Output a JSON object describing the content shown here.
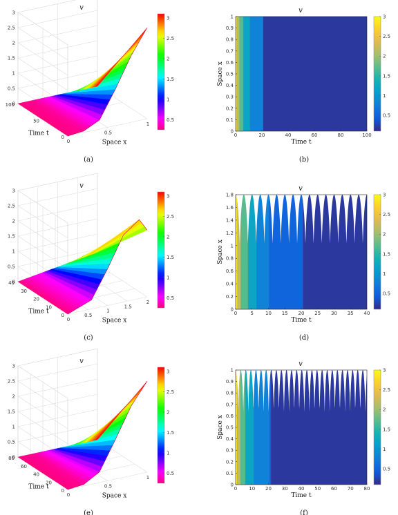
{
  "panels": [
    {
      "id": "a",
      "caption": "(a)",
      "title": "v",
      "chart_data": {
        "type": "surface",
        "xlabel": "Space x",
        "ylabel": "Time t",
        "xlim": [
          0,
          1
        ],
        "tlim": [
          0,
          100
        ],
        "zlim": [
          0,
          3
        ],
        "x_ticks": [
          "0",
          "0.5",
          "1"
        ],
        "t_ticks": [
          "0",
          "50",
          "100"
        ],
        "z_ticks": [
          "0",
          "0.5",
          "1",
          "1.5",
          "2",
          "2.5",
          "3"
        ],
        "colorbar_ticks": [
          "0.5",
          "1",
          "1.5",
          "2",
          "2.5",
          "3"
        ],
        "colormap": "hsv",
        "front_profile": [
          [
            0,
            0
          ],
          [
            0.2,
            0.05
          ],
          [
            0.4,
            0.3
          ],
          [
            0.6,
            1.2
          ],
          [
            0.8,
            2.2
          ],
          [
            1.0,
            3.0
          ]
        ],
        "back_profile": [
          [
            0,
            0
          ],
          [
            1.0,
            0.0
          ]
        ]
      }
    },
    {
      "id": "b",
      "caption": "(b)",
      "title": "v",
      "chart_data": {
        "type": "heatmap",
        "xlabel": "Time t",
        "ylabel": "Space x",
        "xlim": [
          0,
          100
        ],
        "ylim": [
          0,
          1
        ],
        "x_ticks": [
          "0",
          "20",
          "40",
          "60",
          "80",
          "100"
        ],
        "y_ticks": [
          "0",
          "0.1",
          "0.2",
          "0.3",
          "0.4",
          "0.5",
          "0.6",
          "0.7",
          "0.8",
          "0.9",
          "1"
        ],
        "colorbar_ticks": [
          "0.5",
          "1",
          "1.5",
          "2",
          "2.5",
          "3"
        ],
        "colormap": "parula",
        "bands": [
          {
            "t0": 0,
            "t1": 1,
            "level": 0.95
          },
          {
            "t0": 1,
            "t1": 3,
            "level": 0.7
          },
          {
            "t0": 3,
            "t1": 6,
            "level": 0.55
          },
          {
            "t0": 6,
            "t1": 11,
            "level": 0.38
          },
          {
            "t0": 11,
            "t1": 21,
            "level": 0.24
          },
          {
            "t0": 21,
            "t1": 100,
            "level": 0.03
          }
        ]
      }
    },
    {
      "id": "c",
      "caption": "(c)",
      "title": "v",
      "chart_data": {
        "type": "surface",
        "xlabel": "Space x",
        "ylabel": "Time t",
        "xlim": [
          0,
          2
        ],
        "tlim": [
          0,
          40
        ],
        "zlim": [
          0,
          3
        ],
        "x_ticks": [
          "0",
          "0.5",
          "1",
          "1.5",
          "2"
        ],
        "t_ticks": [
          "0",
          "10",
          "20",
          "30",
          "40"
        ],
        "z_ticks": [
          "0",
          "0.5",
          "1",
          "1.5",
          "2",
          "2.5",
          "3"
        ],
        "colorbar_ticks": [
          "0.5",
          "1",
          "1.5",
          "2",
          "2.5",
          "3"
        ],
        "colormap": "hsv",
        "front_profile": [
          [
            0,
            0
          ],
          [
            0.6,
            0.3
          ],
          [
            1.0,
            1.2
          ],
          [
            1.4,
            2.2
          ],
          [
            1.8,
            2.6
          ],
          [
            2.0,
            2.2
          ]
        ],
        "back_profile": [
          [
            0,
            0
          ],
          [
            2.0,
            0.4
          ]
        ]
      }
    },
    {
      "id": "d",
      "caption": "(d)",
      "title": "v",
      "chart_data": {
        "type": "heatmap",
        "xlabel": "Time t",
        "ylabel": "Space x",
        "xlim": [
          0,
          40
        ],
        "ylim": [
          0,
          1.8
        ],
        "x_ticks": [
          "0",
          "5",
          "10",
          "15",
          "20",
          "25",
          "30",
          "35",
          "40"
        ],
        "y_ticks": [
          "0",
          "0.2",
          "0.4",
          "0.6",
          "0.8",
          "1",
          "1.2",
          "1.4",
          "1.6",
          "1.8"
        ],
        "colorbar_ticks": [
          "0.5",
          "1",
          "1.5",
          "2",
          "2.5",
          "3"
        ],
        "colormap": "parula",
        "domain_period": 2.5,
        "domain_min": 0.95,
        "domain_max": 1.8,
        "bands": [
          {
            "t0": 0,
            "t1": 0.6,
            "level": 0.95
          },
          {
            "t0": 0.6,
            "t1": 1.6,
            "level": 0.72
          },
          {
            "t0": 1.6,
            "t1": 3.8,
            "level": 0.55
          },
          {
            "t0": 3.8,
            "t1": 6.4,
            "level": 0.38
          },
          {
            "t0": 6.4,
            "t1": 10.2,
            "level": 0.24
          },
          {
            "t0": 10.2,
            "t1": 20.5,
            "level": 0.14
          },
          {
            "t0": 20.5,
            "t1": 40,
            "level": 0.03
          }
        ]
      }
    },
    {
      "id": "e",
      "caption": "(e)",
      "title": "v",
      "chart_data": {
        "type": "surface",
        "xlabel": "Space x",
        "ylabel": "Time t",
        "xlim": [
          0,
          1
        ],
        "tlim": [
          0,
          80
        ],
        "zlim": [
          0,
          3
        ],
        "x_ticks": [
          "0",
          "0.5",
          "1"
        ],
        "t_ticks": [
          "0",
          "20",
          "40",
          "60",
          "80"
        ],
        "z_ticks": [
          "0",
          "0.5",
          "1",
          "1.5",
          "2",
          "2.5",
          "3"
        ],
        "colorbar_ticks": [
          "0.5",
          "1",
          "1.5",
          "2",
          "2.5",
          "3"
        ],
        "colormap": "hsv",
        "front_profile": [
          [
            0,
            0
          ],
          [
            0.2,
            0.05
          ],
          [
            0.4,
            0.35
          ],
          [
            0.6,
            1.3
          ],
          [
            0.8,
            2.3
          ],
          [
            1.0,
            3.0
          ]
        ],
        "back_profile": [
          [
            0,
            0
          ],
          [
            1.0,
            0.0
          ]
        ]
      }
    },
    {
      "id": "f",
      "caption": "(f)",
      "title": "v",
      "chart_data": {
        "type": "heatmap",
        "xlabel": "Time t",
        "ylabel": "Space x",
        "xlim": [
          0,
          80
        ],
        "ylim": [
          0,
          1
        ],
        "x_ticks": [
          "0",
          "10",
          "20",
          "30",
          "40",
          "50",
          "60",
          "70",
          "80"
        ],
        "y_ticks": [
          "0",
          "0.1",
          "0.2",
          "0.3",
          "0.4",
          "0.5",
          "0.6",
          "0.7",
          "0.8",
          "0.9",
          "1"
        ],
        "colorbar_ticks": [
          "0.5",
          "1",
          "1.5",
          "2",
          "2.5",
          "3"
        ],
        "colormap": "parula",
        "domain_period": 3.1,
        "domain_min": 0.6,
        "domain_max": 1.0,
        "bands": [
          {
            "t0": 0,
            "t1": 1,
            "level": 0.95
          },
          {
            "t0": 1,
            "t1": 3,
            "level": 0.72
          },
          {
            "t0": 3,
            "t1": 6,
            "level": 0.55
          },
          {
            "t0": 6,
            "t1": 11,
            "level": 0.38
          },
          {
            "t0": 11,
            "t1": 20.5,
            "level": 0.24
          },
          {
            "t0": 20.5,
            "t1": 21.5,
            "level": 0.14
          },
          {
            "t0": 21.5,
            "t1": 80,
            "level": 0.03
          }
        ]
      }
    }
  ]
}
